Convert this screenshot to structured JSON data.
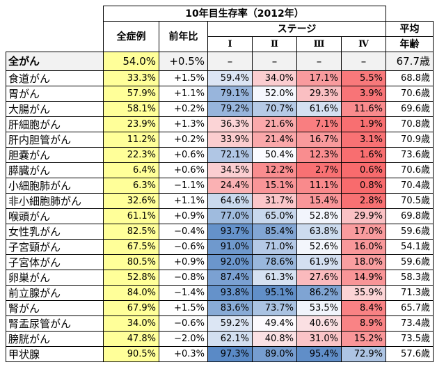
{
  "title": "10年目生存率（2012年）",
  "headers": {
    "all_cases": "全症例",
    "yoy": "前年比",
    "stage": "ステージ",
    "stages": [
      "Ⅰ",
      "Ⅱ",
      "Ⅲ",
      "Ⅳ"
    ],
    "avg_age_line1": "平均",
    "avg_age_line2": "年齢"
  },
  "overall": {
    "name": "全がん",
    "all": "54.0%",
    "yoy": "+0.5%",
    "s1": "–",
    "s2": "–",
    "s3": "–",
    "s4": "–",
    "age": "67.7歳"
  },
  "rows": [
    {
      "name": "食道がん",
      "all": "33.3%",
      "yoy": "+1.5%",
      "s1": "59.4%",
      "s2": "34.0%",
      "s3": "17.1%",
      "s4": "5.5%",
      "age": "68.8歳"
    },
    {
      "name": "胃がん",
      "all": "57.9%",
      "yoy": "+1.1%",
      "s1": "79.1%",
      "s2": "52.0%",
      "s3": "29.3%",
      "s4": "3.9%",
      "age": "70.6歳"
    },
    {
      "name": "大腸がん",
      "all": "58.1%",
      "yoy": "+0.2%",
      "s1": "79.2%",
      "s2": "70.7%",
      "s3": "61.6%",
      "s4": "11.6%",
      "age": "69.6歳"
    },
    {
      "name": "肝細胞がん",
      "all": "23.9%",
      "yoy": "+1.3%",
      "s1": "36.3%",
      "s2": "21.6%",
      "s3": "7.1%",
      "s4": "1.9%",
      "age": "70.8歳"
    },
    {
      "name": "肝内胆管がん",
      "all": "11.2%",
      "yoy": "+0.2%",
      "s1": "33.9%",
      "s2": "21.4%",
      "s3": "16.7%",
      "s4": "3.1%",
      "age": "70.9歳"
    },
    {
      "name": "胆嚢がん",
      "all": "22.3%",
      "yoy": "+0.6%",
      "s1": "72.1%",
      "s2": "50.4%",
      "s3": "12.3%",
      "s4": "1.6%",
      "age": "73.6歳"
    },
    {
      "name": "膵臓がん",
      "all": "6.4%",
      "yoy": "+0.6%",
      "s1": "34.5%",
      "s2": "12.2%",
      "s3": "2.7%",
      "s4": "0.6%",
      "age": "70.6歳"
    },
    {
      "name": "小細胞肺がん",
      "all": "6.3%",
      "yoy": "−1.1%",
      "s1": "24.4%",
      "s2": "15.1%",
      "s3": "11.1%",
      "s4": "0.8%",
      "age": "70.4歳"
    },
    {
      "name": "非小細胞肺がん",
      "all": "32.6%",
      "yoy": "+1.1%",
      "s1": "64.6%",
      "s2": "31.7%",
      "s3": "15.4%",
      "s4": "2.8%",
      "age": "70.5歳"
    },
    {
      "name": "喉頭がん",
      "all": "61.1%",
      "yoy": "+0.9%",
      "s1": "77.0%",
      "s2": "65.0%",
      "s3": "52.8%",
      "s4": "29.9%",
      "age": "69.8歳"
    },
    {
      "name": "女性乳がん",
      "all": "82.5%",
      "yoy": "−0.4%",
      "s1": "93.7%",
      "s2": "85.4%",
      "s3": "63.8%",
      "s4": "17.0%",
      "age": "59.6歳"
    },
    {
      "name": "子宮頸がん",
      "all": "67.5%",
      "yoy": "−0.6%",
      "s1": "91.0%",
      "s2": "71.0%",
      "s3": "52.6%",
      "s4": "16.0%",
      "age": "54.1歳"
    },
    {
      "name": "子宮体がん",
      "all": "80.5%",
      "yoy": "+0.9%",
      "s1": "92.0%",
      "s2": "78.6%",
      "s3": "61.9%",
      "s4": "18.0%",
      "age": "59.6歳"
    },
    {
      "name": "卵巣がん",
      "all": "52.8%",
      "yoy": "−0.8%",
      "s1": "87.4%",
      "s2": "61.3%",
      "s3": "27.6%",
      "s4": "14.9%",
      "age": "58.3歳"
    },
    {
      "name": "前立腺がん",
      "all": "84.0%",
      "yoy": "−1.4%",
      "s1": "93.8%",
      "s2": "95.1%",
      "s3": "86.2%",
      "s4": "35.9%",
      "age": "71.3歳"
    },
    {
      "name": "腎がん",
      "all": "67.9%",
      "yoy": "+1.5%",
      "s1": "83.6%",
      "s2": "73.7%",
      "s3": "53.5%",
      "s4": "8.4%",
      "age": "65.7歳"
    },
    {
      "name": "腎盂尿管がん",
      "all": "34.0%",
      "yoy": "−0.6%",
      "s1": "59.2%",
      "s2": "49.4%",
      "s3": "40.6%",
      "s4": "8.9%",
      "age": "73.4歳"
    },
    {
      "name": "膀胱がん",
      "all": "47.8%",
      "yoy": "−2.0%",
      "s1": "62.1%",
      "s2": "40.8%",
      "s3": "31.0%",
      "s4": "15.2%",
      "age": "73.5歳"
    },
    {
      "name": "甲状腺",
      "all": "90.5%",
      "yoy": "+0.3%",
      "s1": "97.3%",
      "s2": "89.0%",
      "s3": "95.4%",
      "s4": "72.9%",
      "age": "57.6歳"
    }
  ],
  "colors": {
    "highlight": "#ffff99",
    "low": "#f8696b",
    "mid": "#fcfcff",
    "high": "#5a8ac6"
  }
}
